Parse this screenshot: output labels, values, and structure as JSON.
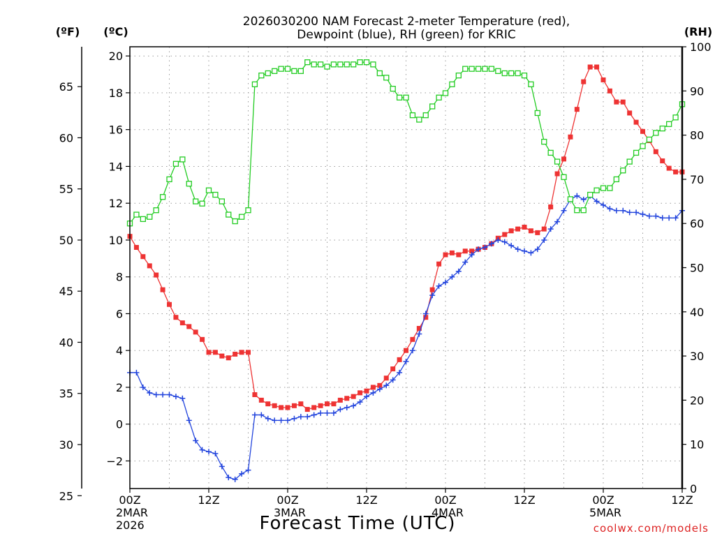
{
  "chart_data": {
    "type": "line",
    "title_lines": [
      "2026030200 NAM Forecast 2-meter Temperature (red),",
      "Dewpoint (blue), RH (green) for KRIC"
    ],
    "xlabel": "Forecast Time (UTC)",
    "credit": "coolwx.com/models",
    "units": {
      "left_outer": "(ºF)",
      "left_inner": "(ºC)",
      "right": "(RH)"
    },
    "x_range_hours": [
      0,
      84
    ],
    "x_ticks": [
      {
        "hour": 0,
        "lines": [
          "00Z",
          "2MAR",
          "2026"
        ]
      },
      {
        "hour": 12,
        "lines": [
          "12Z"
        ]
      },
      {
        "hour": 24,
        "lines": [
          "00Z",
          "3MAR"
        ]
      },
      {
        "hour": 36,
        "lines": [
          "12Z"
        ]
      },
      {
        "hour": 48,
        "lines": [
          "00Z",
          "4MAR"
        ]
      },
      {
        "hour": 60,
        "lines": [
          "12Z"
        ]
      },
      {
        "hour": 72,
        "lines": [
          "00Z",
          "5MAR"
        ]
      },
      {
        "hour": 84,
        "lines": [
          "12Z"
        ]
      }
    ],
    "y_celsius": {
      "range": [
        -3.5,
        20.5
      ],
      "ticks": [
        "−2",
        "0",
        "2",
        "4",
        "6",
        "8",
        "10",
        "12",
        "14",
        "16",
        "18",
        "20"
      ]
    },
    "y_fahrenheit": {
      "ticks": [
        "25",
        "30",
        "35",
        "40",
        "45",
        "50",
        "55",
        "60",
        "65"
      ]
    },
    "y_rh": {
      "range": [
        0,
        100
      ],
      "ticks": [
        "0",
        "10",
        "20",
        "30",
        "40",
        "50",
        "60",
        "70",
        "80",
        "90",
        "100"
      ]
    },
    "grid": true,
    "colors": {
      "temperature": "#ee3333",
      "dewpoint": "#2244dd",
      "rh": "#22cc22",
      "credit": "#dd2222"
    },
    "series": [
      {
        "name": "2-meter Temperature",
        "axis": "celsius",
        "marker": "filled-square",
        "color": "#ee3333",
        "x": [
          0,
          1,
          2,
          3,
          4,
          5,
          6,
          7,
          8,
          9,
          10,
          11,
          12,
          13,
          14,
          15,
          16,
          17,
          18,
          19,
          20,
          21,
          22,
          23,
          24,
          25,
          26,
          27,
          28,
          29,
          30,
          31,
          32,
          33,
          34,
          35,
          36,
          37,
          38,
          39,
          40,
          41,
          42,
          43,
          44,
          45,
          46,
          47,
          48,
          49,
          50,
          51,
          52,
          53,
          54,
          55,
          56,
          57,
          58,
          59,
          60,
          61,
          62,
          63,
          64,
          65,
          66,
          67,
          68,
          69,
          70,
          71,
          72,
          73,
          74,
          75,
          76,
          77,
          78,
          79,
          80,
          81,
          82,
          83,
          84
        ],
        "values": [
          10.2,
          9.6,
          9.1,
          8.6,
          8.1,
          7.3,
          6.5,
          5.8,
          5.5,
          5.3,
          5.0,
          4.6,
          3.9,
          3.9,
          3.7,
          3.6,
          3.8,
          3.9,
          3.9,
          1.6,
          1.3,
          1.1,
          1.0,
          0.9,
          0.9,
          1.0,
          1.1,
          0.8,
          0.9,
          1.0,
          1.1,
          1.1,
          1.3,
          1.4,
          1.5,
          1.7,
          1.8,
          2.0,
          2.1,
          2.5,
          3.0,
          3.5,
          4.0,
          4.6,
          5.2,
          5.8,
          7.3,
          8.7,
          9.2,
          9.3,
          9.2,
          9.4,
          9.4,
          9.5,
          9.6,
          9.8,
          10.1,
          10.3,
          10.5,
          10.6,
          10.7,
          10.5,
          10.4,
          10.6,
          11.8,
          13.6,
          14.4,
          15.6,
          17.1,
          18.6,
          19.4,
          19.4,
          18.7,
          18.1,
          17.5,
          17.5,
          16.9,
          16.4,
          15.9,
          15.4,
          14.8,
          14.3,
          13.9,
          13.7,
          13.7
        ]
      },
      {
        "name": "Dewpoint",
        "axis": "celsius",
        "marker": "plus",
        "color": "#2244dd",
        "x": [
          0,
          1,
          2,
          3,
          4,
          5,
          6,
          7,
          8,
          9,
          10,
          11,
          12,
          13,
          14,
          15,
          16,
          17,
          18,
          19,
          20,
          21,
          22,
          23,
          24,
          25,
          26,
          27,
          28,
          29,
          30,
          31,
          32,
          33,
          34,
          35,
          36,
          37,
          38,
          39,
          40,
          41,
          42,
          43,
          44,
          45,
          46,
          47,
          48,
          49,
          50,
          51,
          52,
          53,
          54,
          55,
          56,
          57,
          58,
          59,
          60,
          61,
          62,
          63,
          64,
          65,
          66,
          67,
          68,
          69,
          70,
          71,
          72,
          73,
          74,
          75,
          76,
          77,
          78,
          79,
          80,
          81,
          82,
          83,
          84
        ],
        "values": [
          2.8,
          2.8,
          2.0,
          1.7,
          1.6,
          1.6,
          1.6,
          1.5,
          1.4,
          0.2,
          -0.9,
          -1.4,
          -1.5,
          -1.6,
          -2.3,
          -2.9,
          -3.0,
          -2.7,
          -2.5,
          0.5,
          0.5,
          0.3,
          0.2,
          0.2,
          0.2,
          0.3,
          0.4,
          0.4,
          0.5,
          0.6,
          0.6,
          0.6,
          0.8,
          0.9,
          1.0,
          1.2,
          1.5,
          1.7,
          1.9,
          2.1,
          2.4,
          2.8,
          3.4,
          4.0,
          4.9,
          6.0,
          7.0,
          7.5,
          7.7,
          8.0,
          8.3,
          8.8,
          9.2,
          9.5,
          9.6,
          9.8,
          10.0,
          9.9,
          9.7,
          9.5,
          9.4,
          9.3,
          9.5,
          10.0,
          10.6,
          11.0,
          11.6,
          12.2,
          12.4,
          12.2,
          12.4,
          12.1,
          11.9,
          11.7,
          11.6,
          11.6,
          11.5,
          11.5,
          11.4,
          11.3,
          11.3,
          11.2,
          11.2,
          11.2,
          11.6
        ]
      },
      {
        "name": "RH",
        "axis": "rh",
        "marker": "open-square",
        "color": "#22cc22",
        "x": [
          0,
          1,
          2,
          3,
          4,
          5,
          6,
          7,
          8,
          9,
          10,
          11,
          12,
          13,
          14,
          15,
          16,
          17,
          18,
          19,
          20,
          21,
          22,
          23,
          24,
          25,
          26,
          27,
          28,
          29,
          30,
          31,
          32,
          33,
          34,
          35,
          36,
          37,
          38,
          39,
          40,
          41,
          42,
          43,
          44,
          45,
          46,
          47,
          48,
          49,
          50,
          51,
          52,
          53,
          54,
          55,
          56,
          57,
          58,
          59,
          60,
          61,
          62,
          63,
          64,
          65,
          66,
          67,
          68,
          69,
          70,
          71,
          72,
          73,
          74,
          75,
          76,
          77,
          78,
          79,
          80,
          81,
          82,
          83,
          84
        ],
        "values": [
          60,
          62,
          61,
          61.5,
          63,
          66,
          70,
          73.5,
          74.5,
          69,
          65,
          64.5,
          67.5,
          66.5,
          65,
          62,
          60.5,
          61.5,
          63,
          91.5,
          93.5,
          94,
          94.5,
          95,
          95,
          94.5,
          94.5,
          96.5,
          96,
          96,
          95.5,
          96,
          96,
          96,
          96,
          96.5,
          96.5,
          96,
          94,
          93,
          90.5,
          88.5,
          88.5,
          84.5,
          83.5,
          84.5,
          86.5,
          88.5,
          89.5,
          91.5,
          93.5,
          95,
          95,
          95,
          95,
          95,
          94.5,
          94,
          94,
          94,
          93.5,
          91.5,
          85,
          78.5,
          76,
          74,
          70.5,
          65.5,
          63,
          63,
          66.5,
          67.5,
          68,
          68,
          70,
          72,
          74,
          76,
          77.5,
          79,
          80.5,
          81.5,
          82.5,
          84,
          87
        ]
      }
    ]
  }
}
